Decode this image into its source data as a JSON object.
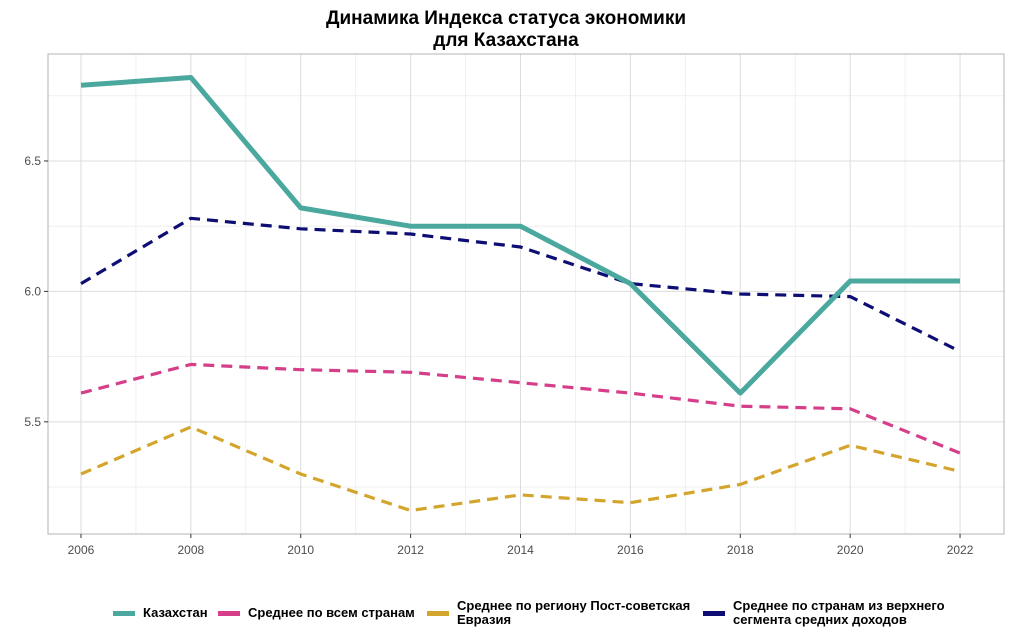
{
  "chart_data": {
    "type": "line",
    "title_line1": "Динамика Индекса статуса экономики",
    "title_line2": "для Казахстана",
    "xlabel": "",
    "ylabel": "",
    "x": [
      2006,
      2008,
      2010,
      2012,
      2014,
      2016,
      2018,
      2020,
      2022
    ],
    "x_ticks": [
      "2006",
      "2008",
      "2010",
      "2012",
      "2014",
      "2016",
      "2018",
      "2020",
      "2022"
    ],
    "xlim": [
      2005.4,
      2022.8
    ],
    "y_ticks": [
      "5.5",
      "6.0",
      "6.5"
    ],
    "ylim": [
      5.07,
      6.91
    ],
    "grid": true,
    "legend_position": "bottom",
    "series": [
      {
        "name": "Казахстан",
        "color": "#4aa89f",
        "style": "solid",
        "values": [
          6.79,
          6.82,
          6.32,
          6.25,
          6.25,
          6.03,
          5.61,
          6.04,
          6.04
        ]
      },
      {
        "name": "Среднее по всем странам",
        "color": "#d63e8a",
        "style": "dashed",
        "values": [
          5.61,
          5.72,
          5.7,
          5.69,
          5.65,
          5.61,
          5.56,
          5.55,
          5.38
        ]
      },
      {
        "name": "Среднее по региону Пост-советская Евразия",
        "color": "#d4a52c",
        "style": "dashed",
        "values": [
          5.3,
          5.48,
          5.3,
          5.16,
          5.22,
          5.19,
          5.26,
          5.41,
          5.31
        ]
      },
      {
        "name": "Среднее по странам из верхнего сегмента средних доходов",
        "color": "#0d0d73",
        "style": "dashed",
        "values": [
          6.03,
          6.28,
          6.24,
          6.22,
          6.17,
          6.03,
          5.99,
          5.98,
          5.77
        ]
      }
    ]
  },
  "legend": {
    "item1": "Казахстан",
    "item2": "Среднее по всем странам",
    "item3_line1": "Среднее по региону Пост-советская",
    "item3_line2": "Евразия",
    "item4_line1": "Среднее по странам из верхнего",
    "item4_line2": "сегмента средних доходов"
  }
}
